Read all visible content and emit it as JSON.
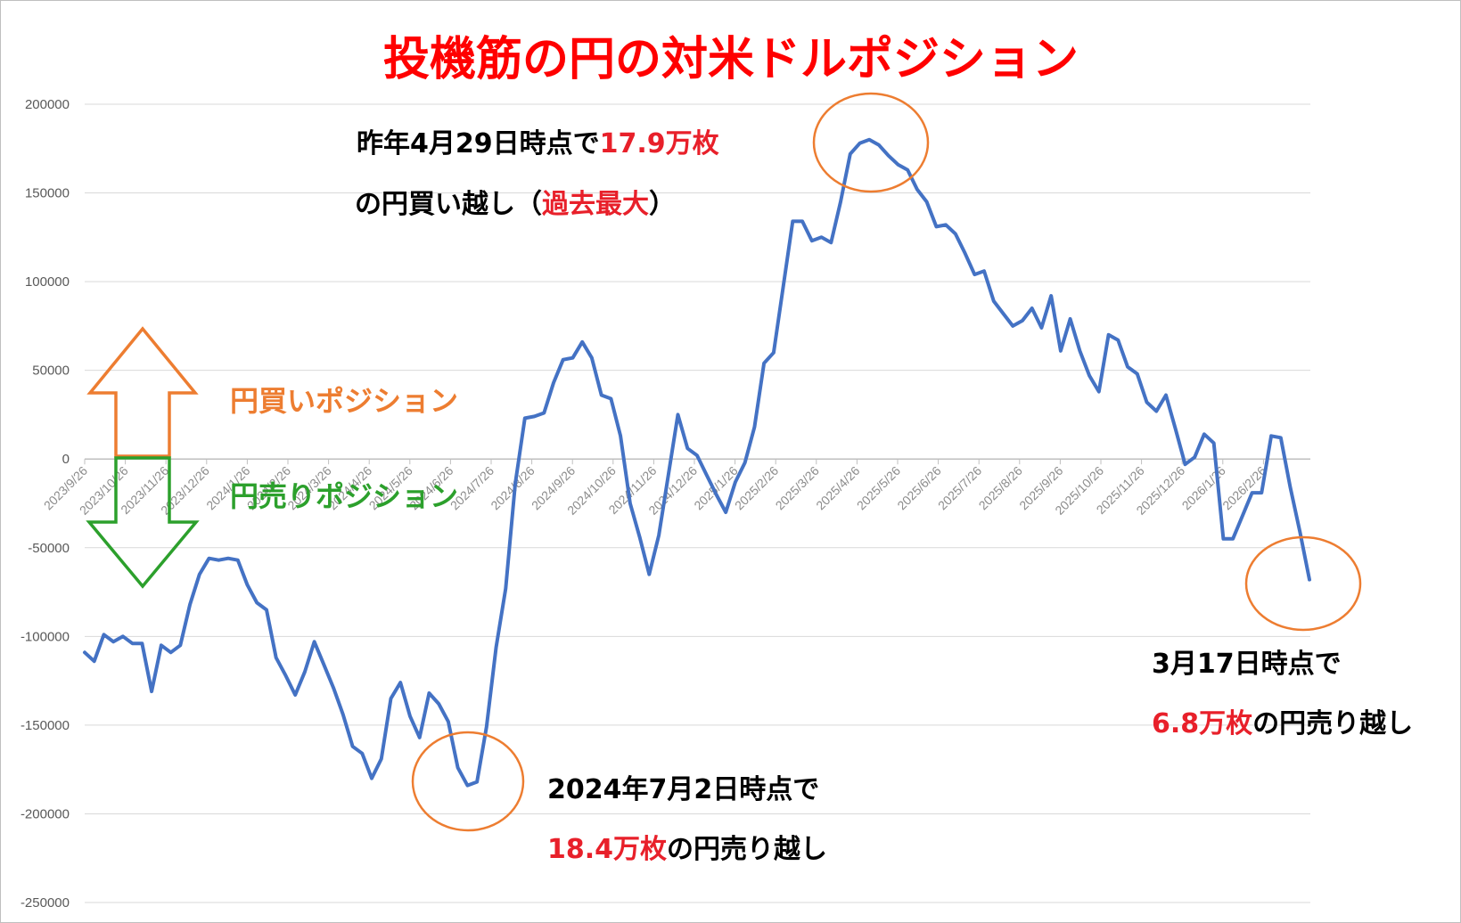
{
  "chart_data": {
    "type": "line",
    "title": "投機筋の円の対米ドルポジション",
    "ylim": [
      -250000,
      200000
    ],
    "yticks": [
      200000,
      150000,
      100000,
      50000,
      0,
      -50000,
      -100000,
      -150000,
      -200000,
      -250000
    ],
    "x_tick_labels": [
      "2023/9/26",
      "2023/10/26",
      "2023/11/26",
      "2023/12/26",
      "2024/1/26",
      "2024/2/26",
      "2024/3/26",
      "2024/4/26",
      "2024/5/26",
      "2024/6/26",
      "2024/7/26",
      "2024/8/26",
      "2024/9/26",
      "2024/10/26",
      "2024/11/26",
      "2024/12/26",
      "2025/1/26",
      "2025/2/26",
      "2025/3/26",
      "2025/4/26",
      "2025/5/26",
      "2025/6/26",
      "2025/7/26",
      "2025/8/26",
      "2025/9/26",
      "2025/10/26",
      "2025/11/26",
      "2025/12/26",
      "2026/1/26",
      "2026/2/26"
    ],
    "grid": true,
    "legend": "none",
    "series_color": "#4472c4",
    "values": [
      -109000,
      -114000,
      -99000,
      -103000,
      -100000,
      -104000,
      -104000,
      -131000,
      -105000,
      -109000,
      -105000,
      -82000,
      -65000,
      -56000,
      -57000,
      -56000,
      -57000,
      -71000,
      -81000,
      -85000,
      -112000,
      -122000,
      -133000,
      -120000,
      -103000,
      -116000,
      -129000,
      -144000,
      -162000,
      -166000,
      -180000,
      -169000,
      -135000,
      -126000,
      -145000,
      -157000,
      -132000,
      -138000,
      -148000,
      -174000,
      -184000,
      -182000,
      -151000,
      -106000,
      -73000,
      -14000,
      23000,
      24000,
      26000,
      43000,
      56000,
      57000,
      66000,
      57000,
      36000,
      34000,
      13000,
      -25000,
      -44000,
      -65000,
      -43000,
      -9000,
      25000,
      6000,
      2000,
      -9000,
      -20000,
      -30000,
      -13000,
      -2000,
      18000,
      54000,
      60000,
      97000,
      134000,
      134000,
      123000,
      125000,
      122000,
      145000,
      172000,
      178000,
      180000,
      177000,
      171000,
      166000,
      163000,
      152000,
      145000,
      131000,
      132000,
      127000,
      116000,
      104000,
      106000,
      89000,
      82000,
      75000,
      78000,
      85000,
      74000,
      92000,
      61000,
      79000,
      61000,
      47000,
      38000,
      70000,
      67000,
      52000,
      48000,
      32000,
      27000,
      36000,
      17000,
      -3000,
      1000,
      14000,
      9000,
      -45000,
      -45000,
      -32000,
      -19000,
      -19000,
      13000,
      12000,
      -16000,
      -41000,
      -68000
    ]
  },
  "annotations": {
    "peak_line1_a": "昨年4月29日時点で",
    "peak_line1_b": "17.9万枚",
    "peak_line2_a": "の円買い越し（",
    "peak_line2_b": "過去最大",
    "peak_line2_c": "）",
    "trough_line1": "2024年7月2日時点で",
    "trough_line2_a": "18.4万枚",
    "trough_line2_b": "の円売り越し",
    "latest_line1": "3月17日時点で",
    "latest_line2_a": "6.8万枚",
    "latest_line2_b": "の円売り越し",
    "buy_label": "円買いポジション",
    "sell_label": "円売りポジション"
  },
  "colors": {
    "line": "#4472c4",
    "highlight_circle": "#ed7d31",
    "buy_arrow": "#ed7d31",
    "sell_arrow": "#2ca02c",
    "title": "#ff0000",
    "emphasis": "#e8202a"
  }
}
